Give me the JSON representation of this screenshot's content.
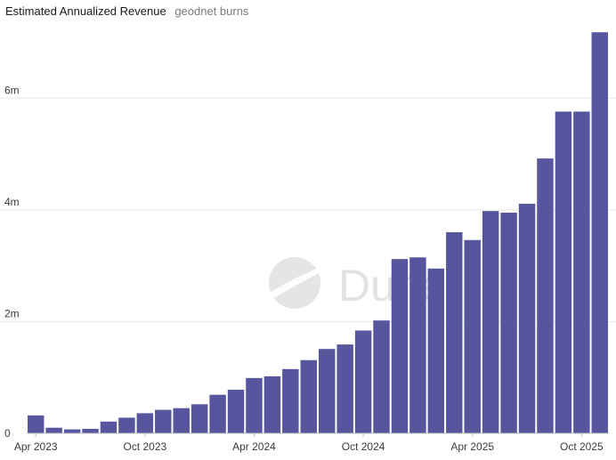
{
  "chart_data": {
    "type": "bar",
    "title": "Estimated Annualized Revenue",
    "subtitle": "geodnet burns",
    "watermark": "Dune",
    "ylim": [
      0,
      7200000
    ],
    "yticks": [
      {
        "value": 0,
        "label": "0"
      },
      {
        "value": 2000000,
        "label": "2m"
      },
      {
        "value": 4000000,
        "label": "4m"
      },
      {
        "value": 6000000,
        "label": "6m"
      }
    ],
    "xticks": [
      {
        "index": 0,
        "label": "Apr 2023"
      },
      {
        "index": 6,
        "label": "Oct 2023"
      },
      {
        "index": 12,
        "label": "Apr 2024"
      },
      {
        "index": 18,
        "label": "Oct 2024"
      },
      {
        "index": 24,
        "label": "Apr 2025"
      },
      {
        "index": 30,
        "label": "Oct 2025"
      }
    ],
    "categories": [
      "2023-04",
      "2023-05",
      "2023-06",
      "2023-07",
      "2023-08",
      "2023-09",
      "2023-10",
      "2023-11",
      "2023-12",
      "2024-01",
      "2024-02",
      "2024-03",
      "2024-04",
      "2024-05",
      "2024-06",
      "2024-07",
      "2024-08",
      "2024-09",
      "2024-10",
      "2024-11",
      "2024-12",
      "2025-01",
      "2025-02",
      "2025-03",
      "2025-04",
      "2025-05",
      "2025-06",
      "2025-07",
      "2025-08",
      "2025-09",
      "2025-10",
      "2025-11"
    ],
    "series": [
      {
        "name": "geodnet burns",
        "color": "#56559d",
        "values": [
          320000,
          100000,
          70000,
          80000,
          210000,
          280000,
          360000,
          420000,
          450000,
          520000,
          690000,
          780000,
          990000,
          1020000,
          1150000,
          1310000,
          1510000,
          1590000,
          1840000,
          2020000,
          3120000,
          3150000,
          2950000,
          3600000,
          3460000,
          3980000,
          3950000,
          4110000,
          4920000,
          5760000,
          5760000,
          7180000
        ]
      }
    ],
    "grid": true,
    "colors": {
      "grid": "#e8e8e8",
      "axis": "#bdbdbd"
    }
  }
}
